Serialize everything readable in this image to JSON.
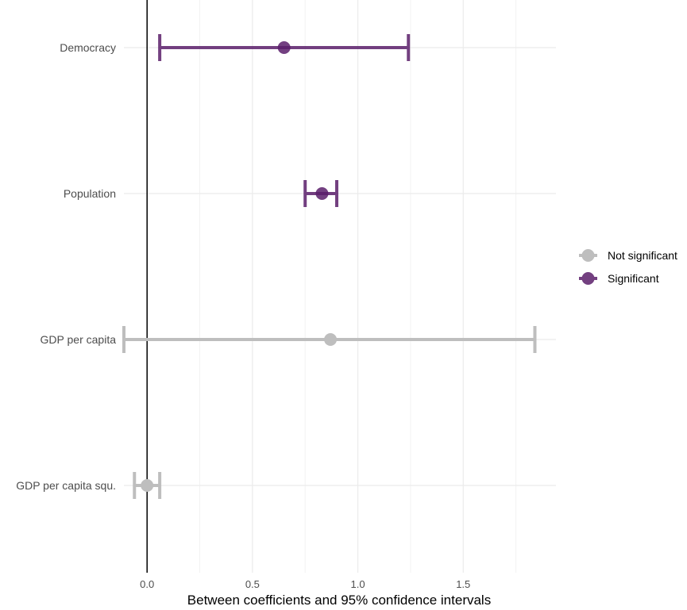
{
  "chart_data": {
    "type": "scatter",
    "subtype": "coefficient-plot-with-error-bars",
    "title": "",
    "xlabel": "Between coefficients and 95% confidence intervals",
    "ylabel": "",
    "xlim": [
      -0.11,
      1.94
    ],
    "x_ticks": [
      0.0,
      0.5,
      1.0,
      1.5
    ],
    "x_tick_labels": [
      "0.0",
      "0.5",
      "1.0",
      "1.5"
    ],
    "reference_line": 0,
    "grid": true,
    "legend_position": "right",
    "legend": [
      {
        "label": "Not significant",
        "color": "#bebebe"
      },
      {
        "label": "Significant",
        "color": "#5b1f6b"
      }
    ],
    "points": [
      {
        "label": "Democracy",
        "estimate": 0.65,
        "lower": 0.06,
        "upper": 1.24,
        "group": "Significant"
      },
      {
        "label": "Population",
        "estimate": 0.83,
        "lower": 0.75,
        "upper": 0.9,
        "group": "Significant"
      },
      {
        "label": "GDP per capita",
        "estimate": 0.87,
        "lower": -0.11,
        "upper": 1.84,
        "group": "Not significant"
      },
      {
        "label": "GDP per capita squ.",
        "estimate": 0.0,
        "lower": -0.06,
        "upper": 0.06,
        "group": "Not significant"
      }
    ]
  }
}
